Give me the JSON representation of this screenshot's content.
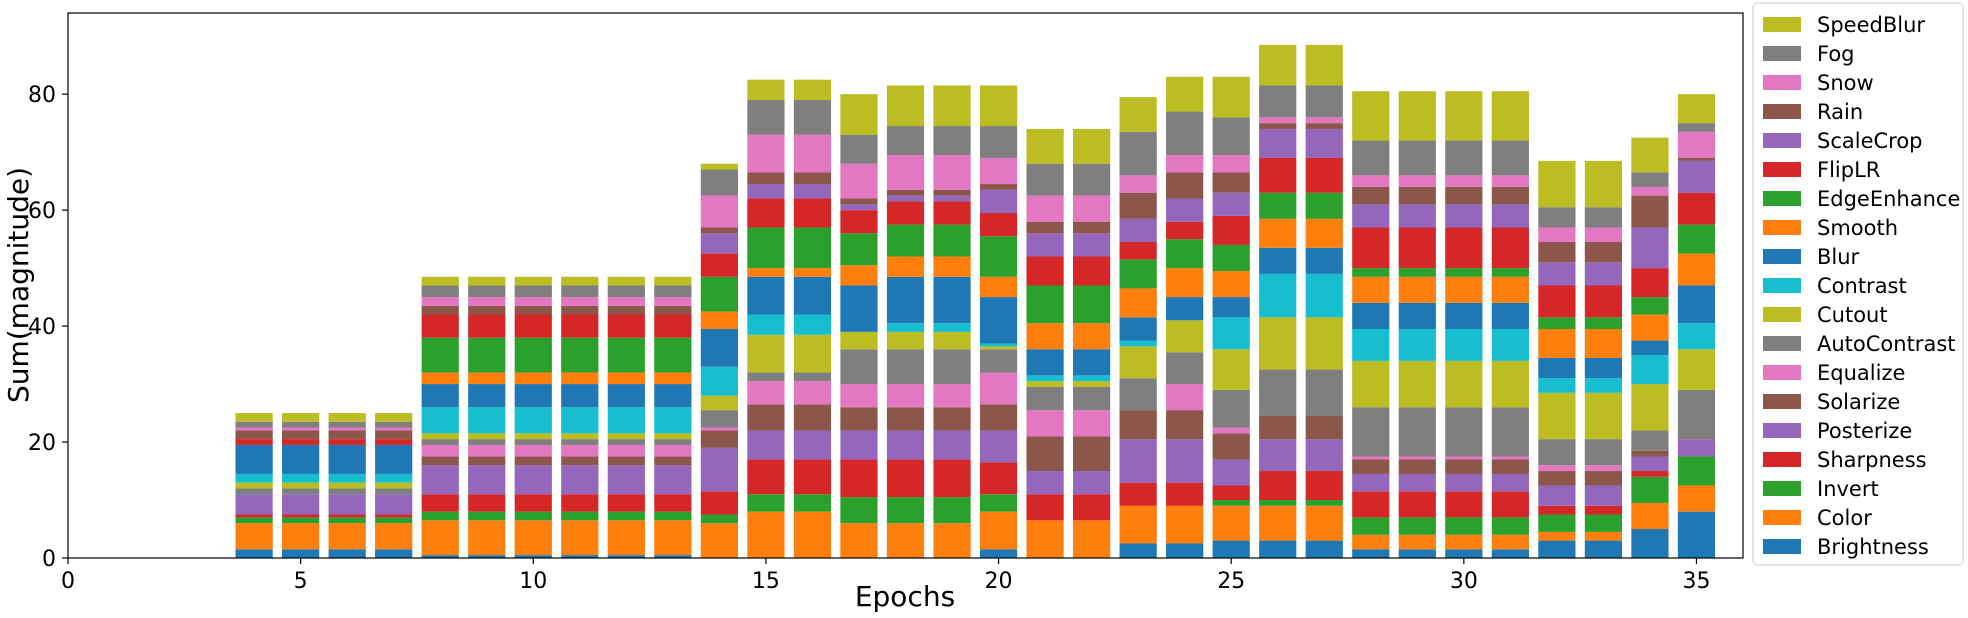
{
  "chart_data": {
    "type": "bar",
    "stacked": true,
    "title": "",
    "xlabel": "Epochs",
    "ylabel": "Sum(magnitude)",
    "xlim": [
      0,
      36
    ],
    "ylim": [
      0,
      94
    ],
    "xticks": [
      0,
      5,
      10,
      15,
      20,
      25,
      30,
      35
    ],
    "yticks": [
      0,
      20,
      40,
      60,
      80
    ],
    "grid": false,
    "legend_position": "right",
    "epochs": [
      4,
      5,
      6,
      7,
      8,
      9,
      10,
      11,
      12,
      13,
      14,
      15,
      16,
      17,
      18,
      19,
      20,
      21,
      22,
      23,
      24,
      25,
      26,
      27,
      28,
      29,
      30,
      31,
      32,
      33,
      34,
      35
    ],
    "series": [
      {
        "name": "Brightness",
        "color": "#1f77b4",
        "values": [
          1.5,
          1.5,
          1.5,
          1.5,
          0.5,
          0.5,
          0.5,
          0.5,
          0.5,
          0.5,
          0,
          0,
          0,
          0,
          0,
          0,
          1.5,
          0,
          0,
          2.5,
          2.5,
          3,
          3,
          3,
          1.5,
          1.5,
          1.5,
          1.5,
          3,
          3,
          5,
          8
        ]
      },
      {
        "name": "Color",
        "color": "#ff7f0e",
        "values": [
          4.5,
          4.5,
          4.5,
          4.5,
          6,
          6,
          6,
          6,
          6,
          6,
          6,
          8,
          8,
          6,
          6,
          6,
          6.5,
          6.5,
          6.5,
          6.5,
          6.5,
          6,
          6,
          6,
          2.5,
          2.5,
          2.5,
          2.5,
          1.5,
          1.5,
          4.5,
          4.5
        ]
      },
      {
        "name": "Invert",
        "color": "#2ca02c",
        "values": [
          1,
          1,
          1,
          1,
          1.5,
          1.5,
          1.5,
          1.5,
          1.5,
          1.5,
          1.5,
          3,
          3,
          4.5,
          4.5,
          4.5,
          3,
          0,
          0,
          0,
          0,
          1,
          1,
          1,
          3,
          3,
          3,
          3,
          3,
          3,
          4.5,
          5
        ]
      },
      {
        "name": "Sharpness",
        "color": "#d62728",
        "values": [
          0.5,
          0.5,
          0.5,
          0.5,
          3,
          3,
          3,
          3,
          3,
          3,
          4,
          6,
          6,
          6.5,
          6.5,
          6.5,
          5.5,
          4.5,
          4.5,
          4,
          4,
          2.5,
          5,
          5,
          4.5,
          4.5,
          4.5,
          4.5,
          1.5,
          1.5,
          1,
          0
        ]
      },
      {
        "name": "Posterize",
        "color": "#9467bd",
        "values": [
          3.5,
          3.5,
          3.5,
          3.5,
          5,
          5,
          5,
          5,
          5,
          5,
          7.5,
          5,
          5,
          5,
          5,
          5,
          5.5,
          4,
          4,
          7.5,
          7.5,
          4.5,
          5.5,
          5.5,
          3,
          3,
          3,
          3,
          3.5,
          3.5,
          2.5,
          3
        ]
      },
      {
        "name": "Solarize",
        "color": "#8c564b",
        "values": [
          0,
          0,
          0,
          0,
          1.5,
          1.5,
          1.5,
          1.5,
          1.5,
          1.5,
          3,
          4.5,
          4.5,
          4,
          4,
          4,
          4.5,
          6,
          6,
          5,
          5,
          4.5,
          4,
          4,
          2.5,
          2.5,
          2.5,
          2.5,
          2.5,
          2.5,
          1,
          0
        ]
      },
      {
        "name": "Equalize",
        "color": "#e377c2",
        "values": [
          0,
          0,
          0,
          0,
          2,
          2,
          2,
          2,
          2,
          2,
          0.5,
          4,
          4,
          4,
          4,
          4,
          5.5,
          4.5,
          4.5,
          0,
          4.5,
          1,
          0,
          0,
          0.5,
          0.5,
          0.5,
          0.5,
          1,
          1,
          0,
          0
        ]
      },
      {
        "name": "AutoContrast",
        "color": "#7f7f7f",
        "values": [
          1,
          1,
          1,
          1,
          1,
          1,
          1,
          1,
          1,
          1,
          3,
          1.5,
          1.5,
          6,
          6,
          6,
          4,
          4,
          4,
          5.5,
          5.5,
          6.5,
          8,
          8,
          8.5,
          8.5,
          8.5,
          8.5,
          4.5,
          4.5,
          3.5,
          8.5
        ]
      },
      {
        "name": "Cutout",
        "color": "#bcbd22",
        "values": [
          1,
          1,
          1,
          1,
          1,
          1,
          1,
          1,
          1,
          1,
          2.5,
          6.5,
          6.5,
          3,
          3,
          3,
          0.5,
          1,
          1,
          5.5,
          5.5,
          7,
          9,
          9,
          8,
          8,
          8,
          8,
          8,
          8,
          8,
          7
        ]
      },
      {
        "name": "Contrast",
        "color": "#17becf",
        "values": [
          1.5,
          1.5,
          1.5,
          1.5,
          4.5,
          4.5,
          4.5,
          4.5,
          4.5,
          4.5,
          5,
          3.5,
          3.5,
          0,
          1.5,
          1.5,
          0.5,
          1,
          1,
          1,
          0,
          5.5,
          7.5,
          7.5,
          5.5,
          5.5,
          5.5,
          5.5,
          2.5,
          2.5,
          5,
          4.5
        ]
      },
      {
        "name": "Blur",
        "color": "#1f77b4",
        "values": [
          5,
          5,
          5,
          5,
          4,
          4,
          4,
          4,
          4,
          4,
          6.5,
          6.5,
          6.5,
          8,
          8,
          8,
          8,
          4.5,
          4.5,
          4,
          4,
          3.5,
          4.5,
          4.5,
          4.5,
          4.5,
          4.5,
          4.5,
          3.5,
          3.5,
          2.5,
          6.5
        ]
      },
      {
        "name": "Smooth",
        "color": "#ff7f0e",
        "values": [
          0,
          0,
          0,
          0,
          2,
          2,
          2,
          2,
          2,
          2,
          3,
          1.5,
          1.5,
          3.5,
          3.5,
          3.5,
          3.5,
          4.5,
          4.5,
          5,
          5,
          4.5,
          5,
          5,
          4.5,
          4.5,
          4.5,
          4.5,
          5,
          5,
          4.5,
          5.5
        ]
      },
      {
        "name": "EdgeEnhance",
        "color": "#2ca02c",
        "values": [
          0,
          0,
          0,
          0,
          6,
          6,
          6,
          6,
          6,
          6,
          6,
          7,
          7,
          5.5,
          5.5,
          5.5,
          7,
          6.5,
          6.5,
          5,
          5,
          4.5,
          4.5,
          4.5,
          1.5,
          1.5,
          1.5,
          1.5,
          2,
          2,
          3,
          5
        ]
      },
      {
        "name": "FlipLR",
        "color": "#d62728",
        "values": [
          1,
          1,
          1,
          1,
          4,
          4,
          4,
          4,
          4,
          4,
          4,
          5,
          5,
          4,
          4,
          4,
          4,
          5,
          5,
          3,
          3,
          5,
          6,
          6,
          7,
          7,
          7,
          7,
          5.5,
          5.5,
          5,
          5.5
        ]
      },
      {
        "name": "ScaleCrop",
        "color": "#9467bd",
        "values": [
          0,
          0,
          0,
          0,
          0,
          0,
          0,
          0,
          0,
          0,
          3.5,
          2.5,
          2.5,
          1,
          1,
          1,
          4,
          4,
          4,
          4,
          4,
          4,
          5,
          5,
          4,
          4,
          4,
          4,
          4,
          4,
          7,
          5.5
        ]
      },
      {
        "name": "Rain",
        "color": "#8c564b",
        "values": [
          1.5,
          1.5,
          1.5,
          1.5,
          1.5,
          1.5,
          1.5,
          1.5,
          1.5,
          1.5,
          1,
          2,
          2,
          1,
          1,
          1,
          1,
          2,
          2,
          4.5,
          4.5,
          3.5,
          1,
          1,
          3,
          3,
          3,
          3,
          3.5,
          3.5,
          5.5,
          0.5
        ]
      },
      {
        "name": "Snow",
        "color": "#e377c2",
        "values": [
          0.5,
          0.5,
          0.5,
          0.5,
          1.5,
          1.5,
          1.5,
          1.5,
          1.5,
          1.5,
          5.5,
          6.5,
          6.5,
          6,
          6,
          6,
          4.5,
          4.5,
          4.5,
          3,
          3,
          3,
          1,
          1,
          2,
          2,
          2,
          2,
          2.5,
          2.5,
          1.5,
          4.5
        ]
      },
      {
        "name": "Fog",
        "color": "#7f7f7f",
        "values": [
          1,
          1,
          1,
          1,
          2,
          2,
          2,
          2,
          2,
          2,
          4.5,
          6,
          6,
          5,
          5,
          5,
          5.5,
          5.5,
          5.5,
          7.5,
          7.5,
          6.5,
          5.5,
          5.5,
          6,
          6,
          6,
          6,
          3.5,
          3.5,
          2.5,
          1.5
        ]
      },
      {
        "name": "SpeedBlur",
        "color": "#bcbd22",
        "values": [
          1.5,
          1.5,
          1.5,
          1.5,
          1.5,
          1.5,
          1.5,
          1.5,
          1.5,
          1.5,
          1,
          3.5,
          3.5,
          7,
          7,
          7,
          7,
          6,
          6,
          6,
          6,
          7,
          7,
          7,
          8.5,
          8.5,
          8.5,
          8.5,
          8,
          8,
          6,
          5
        ]
      }
    ]
  }
}
